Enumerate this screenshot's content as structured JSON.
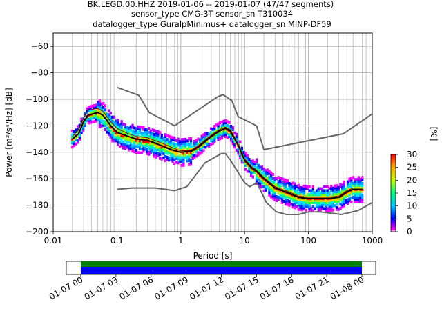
{
  "title_lines": [
    "BK.LEGD.00.HHZ   2019-01-06 -- 2019-01-07  (47/47 segments)",
    "sensor_type CMG-3T sensor_sn T310034",
    "datalogger_type GuralpMinimus+ datalogger_sn MINP-DF59"
  ],
  "colors": {
    "noise_model": "#666666",
    "mode_line": "#000000",
    "mean_line": "#800000",
    "grid": "#b0b0b0",
    "coverage_green": "#008000",
    "coverage_blue": "#0000ff"
  },
  "chart_data": [
    {
      "type": "heatmap",
      "xlabel": "Period [s]",
      "ylabel": "Power [m²/s⁴/Hz] [dB]",
      "xscale": "log",
      "xlim": [
        0.01,
        1000
      ],
      "ylim": [
        -200,
        -50
      ],
      "x_ticks": [
        0.01,
        0.1,
        1,
        10,
        100,
        1000
      ],
      "x_tick_labels": [
        "0.01",
        "0.1",
        "1",
        "10",
        "100",
        "1000"
      ],
      "y_ticks": [
        -200,
        -180,
        -160,
        -140,
        -120,
        -100,
        -80,
        -60
      ],
      "y_tick_labels": [
        "−200",
        "−180",
        "−160",
        "−140",
        "−120",
        "−100",
        "−80",
        "−60"
      ],
      "grid": true,
      "colorbar": {
        "label": "[%]",
        "range": [
          0,
          30
        ],
        "ticks": [
          "0",
          "5",
          "10",
          "15",
          "20",
          "25",
          "30"
        ]
      },
      "series": [
        {
          "role": "noise_model_high",
          "points": [
            [
              0.1,
              -91
            ],
            [
              0.22,
              -97
            ],
            [
              0.32,
              -110
            ],
            [
              0.8,
              -120
            ],
            [
              3.8,
              -98
            ],
            [
              4.6,
              -96.5
            ],
            [
              6.3,
              -101
            ],
            [
              7.9,
              -113
            ],
            [
              15.4,
              -120
            ],
            [
              20,
              -138
            ],
            [
              354,
              -126
            ],
            [
              1000,
              -111
            ]
          ]
        },
        {
          "role": "noise_model_low",
          "points": [
            [
              0.1,
              -168
            ],
            [
              0.17,
              -167
            ],
            [
              0.4,
              -167
            ],
            [
              0.8,
              -169
            ],
            [
              1.24,
              -166
            ],
            [
              2.4,
              -148
            ],
            [
              4.3,
              -141
            ],
            [
              5,
              -141
            ],
            [
              6,
              -146
            ],
            [
              10,
              -163
            ],
            [
              12,
              -166
            ],
            [
              15.6,
              -163
            ],
            [
              21.9,
              -178
            ],
            [
              31.6,
              -185
            ],
            [
              45,
              -187
            ],
            [
              70,
              -187
            ],
            [
              101,
              -185
            ],
            [
              154,
              -185
            ],
            [
              328,
              -187
            ],
            [
              600,
              -184
            ],
            [
              1000,
              -178
            ]
          ]
        },
        {
          "role": "mode",
          "points": [
            [
              0.02,
              -130
            ],
            [
              0.025,
              -126
            ],
            [
              0.03,
              -117
            ],
            [
              0.035,
              -112
            ],
            [
              0.05,
              -110
            ],
            [
              0.06,
              -112
            ],
            [
              0.08,
              -120
            ],
            [
              0.1,
              -125
            ],
            [
              0.15,
              -128
            ],
            [
              0.2,
              -130
            ],
            [
              0.3,
              -131
            ],
            [
              0.5,
              -135
            ],
            [
              0.7,
              -138
            ],
            [
              1,
              -140
            ],
            [
              1.5,
              -139
            ],
            [
              2,
              -135
            ],
            [
              3,
              -128
            ],
            [
              4,
              -124
            ],
            [
              5,
              -122
            ],
            [
              6,
              -124
            ],
            [
              7,
              -130
            ],
            [
              8,
              -135
            ],
            [
              10,
              -146
            ],
            [
              13,
              -152
            ],
            [
              15,
              -154
            ],
            [
              20,
              -160
            ],
            [
              30,
              -167
            ],
            [
              50,
              -171
            ],
            [
              70,
              -174
            ],
            [
              100,
              -175
            ],
            [
              150,
              -175
            ],
            [
              200,
              -175
            ],
            [
              300,
              -174
            ],
            [
              400,
              -170
            ],
            [
              500,
              -168
            ],
            [
              700,
              -168
            ]
          ]
        },
        {
          "role": "mean",
          "points": [
            [
              0.02,
              -128
            ],
            [
              0.025,
              -123
            ],
            [
              0.03,
              -114
            ],
            [
              0.035,
              -108
            ],
            [
              0.05,
              -107
            ],
            [
              0.06,
              -109
            ],
            [
              0.08,
              -117
            ],
            [
              0.1,
              -122
            ],
            [
              0.15,
              -126
            ],
            [
              0.2,
              -128
            ],
            [
              0.3,
              -129
            ],
            [
              0.5,
              -133
            ],
            [
              0.7,
              -136
            ],
            [
              1,
              -139
            ],
            [
              1.5,
              -138
            ],
            [
              2,
              -134
            ],
            [
              3,
              -127
            ],
            [
              4,
              -123
            ],
            [
              5,
              -121
            ],
            [
              6,
              -123
            ],
            [
              7,
              -129
            ],
            [
              8,
              -134
            ],
            [
              10,
              -145
            ],
            [
              13,
              -151
            ],
            [
              15,
              -153
            ],
            [
              20,
              -159
            ],
            [
              30,
              -166
            ],
            [
              50,
              -170
            ],
            [
              70,
              -173
            ],
            [
              100,
              -174
            ],
            [
              150,
              -174
            ],
            [
              200,
              -174
            ],
            [
              300,
              -173
            ],
            [
              400,
              -169
            ],
            [
              500,
              -167
            ],
            [
              700,
              -167
            ]
          ]
        }
      ]
    },
    {
      "type": "bar",
      "role": "coverage_timeline",
      "xlim": [
        "01-06 23:00",
        "01-08 01:00"
      ],
      "x_tick_labels": [
        "01-07 00",
        "01-07 03",
        "01-07 06",
        "01-07 09",
        "01-07 12",
        "01-07 15",
        "01-07 18",
        "01-07 21",
        "01-08 00"
      ],
      "coverage": {
        "start": "01-07 00",
        "end": "01-08 00",
        "fraction": 1.0
      }
    }
  ]
}
